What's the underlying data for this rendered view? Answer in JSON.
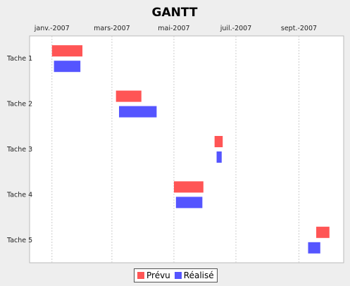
{
  "chart_data": {
    "type": "gantt",
    "title": "GANTT",
    "x_ticks": [
      {
        "label": "janv.-2007",
        "date": "2007-01-01"
      },
      {
        "label": "mars-2007",
        "date": "2007-03-01"
      },
      {
        "label": "mai-2007",
        "date": "2007-05-01"
      },
      {
        "label": "juil.-2007",
        "date": "2007-07-01"
      },
      {
        "label": "sept.-2007",
        "date": "2007-09-01"
      }
    ],
    "xlim": [
      "2006-12-10",
      "2007-10-15"
    ],
    "grid": "vertical dashed",
    "legend_position": "bottom",
    "categories": [
      "Tache 1",
      "Tache 2",
      "Tache 3",
      "Tache 4",
      "Tache 5"
    ],
    "series": [
      {
        "name": "Prévu",
        "color": "#ff5555",
        "tasks": [
          {
            "category": "Tache 1",
            "start": "2007-01-01",
            "end": "2007-01-31"
          },
          {
            "category": "Tache 2",
            "start": "2007-03-05",
            "end": "2007-03-30"
          },
          {
            "category": "Tache 3",
            "start": "2007-06-10",
            "end": "2007-06-18"
          },
          {
            "category": "Tache 4",
            "start": "2007-05-01",
            "end": "2007-05-30"
          },
          {
            "category": "Tache 5",
            "start": "2007-09-18",
            "end": "2007-10-01"
          }
        ]
      },
      {
        "name": "Réalisé",
        "color": "#5555ff",
        "tasks": [
          {
            "category": "Tache 1",
            "start": "2007-01-03",
            "end": "2007-01-29"
          },
          {
            "category": "Tache 2",
            "start": "2007-03-08",
            "end": "2007-04-14"
          },
          {
            "category": "Tache 3",
            "start": "2007-06-12",
            "end": "2007-06-17"
          },
          {
            "category": "Tache 4",
            "start": "2007-05-03",
            "end": "2007-05-29"
          },
          {
            "category": "Tache 5",
            "start": "2007-09-10",
            "end": "2007-09-22"
          }
        ]
      }
    ]
  }
}
